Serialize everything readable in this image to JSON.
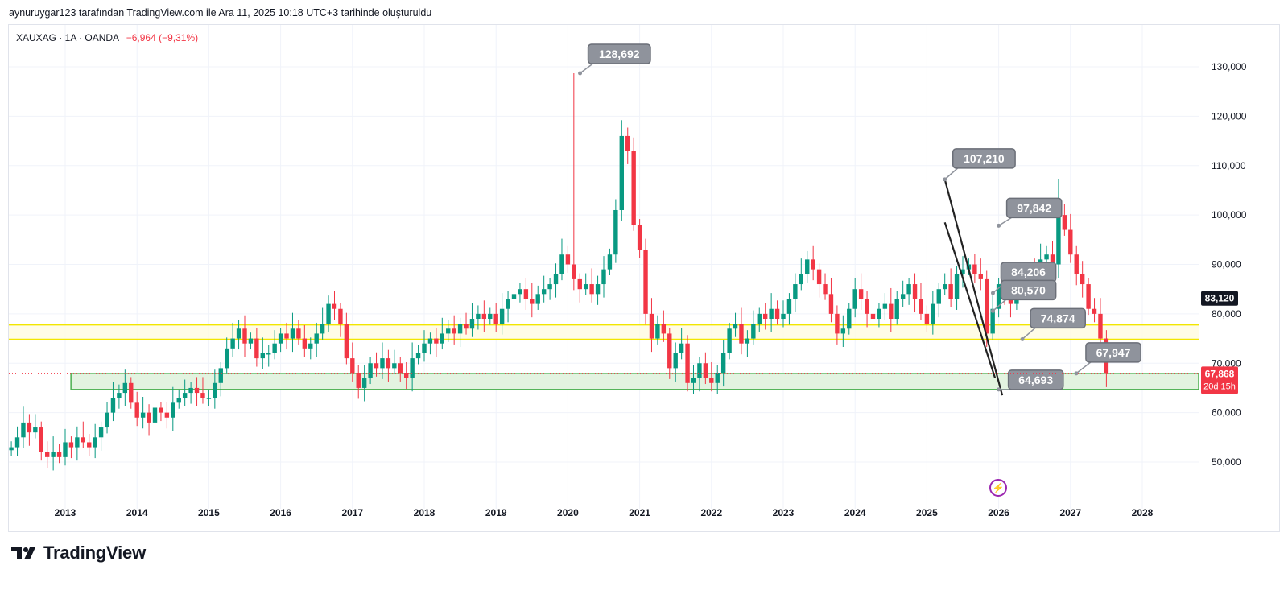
{
  "caption": "aynuruygar123 tarafından TradingView.com ile Ara 11, 2025 10:18 UTC+3 tarihinde oluşturuldu",
  "symbol": {
    "title": "XAUXAG · 1A · OANDA",
    "change": "−6,964 (−9,31%)"
  },
  "brand": {
    "name": "TradingView",
    "logo_icon": "tradingview-logo-icon",
    "flash_icon": "lightning-icon"
  },
  "colors": {
    "up": "#089981",
    "down": "#f23645",
    "yellow_zone": "#f2e600",
    "green_zone": "#4caf50",
    "label_bg": "#8f939c",
    "price_tag_dark": "#131722"
  },
  "chart_data": {
    "type": "candlestick",
    "title": "XAUXAG · 1A · OANDA",
    "interval": "1 month",
    "ylim": [
      42000,
      139000
    ],
    "y_ticks": [
      "50,000",
      "60,000",
      "70,000",
      "80,000",
      "90,000",
      "100,000",
      "110,000",
      "120,000",
      "130,000"
    ],
    "y_tick_values": [
      50000,
      60000,
      70000,
      80000,
      90000,
      100000,
      110000,
      120000,
      130000
    ],
    "x_range": [
      2012.2,
      2028.9
    ],
    "x_ticks": [
      "2013",
      "2014",
      "2015",
      "2016",
      "2017",
      "2018",
      "2019",
      "2020",
      "2021",
      "2022",
      "2023",
      "2024",
      "2025",
      "2026",
      "2027",
      "2028"
    ],
    "x_tick_values": [
      2013,
      2014,
      2015,
      2016,
      2017,
      2018,
      2019,
      2020,
      2021,
      2022,
      2023,
      2024,
      2025,
      2026,
      2027,
      2028
    ],
    "start": 2012.25,
    "closes": [
      53,
      55,
      58,
      56,
      57,
      52,
      51,
      52,
      51,
      54,
      53,
      55,
      54,
      53,
      55,
      57,
      60,
      63,
      64,
      66,
      62,
      59,
      60,
      58,
      61,
      60,
      59,
      62,
      63,
      64,
      65,
      64,
      63,
      63,
      66,
      69,
      73,
      75,
      77,
      74,
      75,
      71,
      72,
      72,
      74,
      76,
      75,
      77,
      75,
      73,
      74,
      76,
      78,
      82,
      81,
      78,
      71,
      68,
      65,
      67,
      70,
      69,
      71,
      69,
      70,
      68,
      67,
      71,
      72,
      74,
      75,
      74,
      76,
      77,
      76,
      78,
      77,
      79,
      80,
      79,
      80,
      78,
      81,
      83,
      84,
      85,
      83,
      82,
      84,
      85,
      86,
      88,
      92,
      90,
      87,
      85,
      86,
      84,
      86,
      89,
      92,
      101,
      116,
      113,
      98,
      93,
      80,
      75,
      78,
      76,
      69,
      72,
      74,
      66,
      67,
      70,
      67,
      66,
      68,
      72,
      77,
      78,
      74,
      75,
      78,
      80,
      79,
      81,
      79,
      80,
      83,
      86,
      88,
      91,
      89,
      86,
      84,
      80,
      76,
      77,
      81,
      85,
      83,
      80,
      79,
      81,
      82,
      79,
      83,
      84,
      86,
      83,
      80,
      78,
      82,
      85,
      86,
      83,
      88,
      89,
      90,
      88,
      87,
      76,
      81,
      86,
      84,
      82,
      85,
      87,
      89,
      88,
      91,
      92,
      90,
      100,
      97,
      92,
      88,
      86,
      81,
      80,
      75,
      67.868
    ],
    "series_highs": [
      128692,
      107210
    ],
    "horizontal_zones": [
      {
        "name": "yellow-zone",
        "from": 74800,
        "to": 77800
      },
      {
        "name": "green-zone",
        "from": 64693,
        "to": 67947
      }
    ],
    "trendlines": [
      {
        "from": [
          2025.25,
          107210
        ],
        "to": [
          2026.05,
          63500
        ]
      },
      {
        "from": [
          2025.25,
          98500
        ],
        "to": [
          2025.95,
          67000
        ]
      }
    ],
    "callouts": [
      {
        "label": "128,692",
        "x": 2020.17,
        "y": 128692
      },
      {
        "label": "107,210",
        "x": 2025.25,
        "y": 107210
      },
      {
        "label": "97,842",
        "x": 2026.0,
        "y": 97842
      },
      {
        "label": "84,206",
        "x": 2025.92,
        "y": 84206
      },
      {
        "label": "80,570",
        "x": 2025.92,
        "y": 80570
      },
      {
        "label": "74,874",
        "x": 2026.33,
        "y": 74874
      },
      {
        "label": "64,693",
        "x": 2026.0,
        "y": 64693
      },
      {
        "label": "67,947",
        "x": 2027.08,
        "y": 67947
      }
    ],
    "price_tags": [
      {
        "label": "83,120",
        "value": 83120,
        "style": "dark"
      },
      {
        "label": "67,868",
        "sublabel": "20d 15h",
        "value": 67868,
        "style": "red"
      }
    ]
  }
}
